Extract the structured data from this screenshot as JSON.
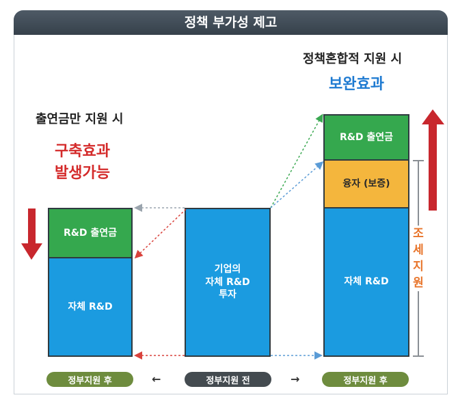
{
  "header": {
    "title": "정책 부가성 제고"
  },
  "left": {
    "caption": "출연금만 지원 시",
    "effect_line1": "구축효과",
    "effect_line2": "발생가능",
    "top_block": "R&D 출연금",
    "bottom_block": "자체 R&D",
    "footer": "정부지원 후"
  },
  "center": {
    "block": "기업의\n자체 R&D\n투자",
    "footer": "정부지원 전"
  },
  "right": {
    "caption": "정책혼합적 지원 시",
    "effect": "보완효과",
    "top_block": "R&D 출연금",
    "middle_block": "융자 (보증)",
    "bottom_block": "자체 R&D",
    "tax_label": "조\n세\n지\n원",
    "footer": "정부지원 후"
  },
  "arrows": {
    "left": "←",
    "right": "→"
  },
  "colors": {
    "header": "#3f4a55",
    "blue_block": "#1b9be0",
    "green_block": "#35a84e",
    "yellow_block": "#f4b63d",
    "red_text": "#d42a2a",
    "blue_text": "#1e7ad1",
    "orange_text": "#e8742a",
    "down_arrow": "#c8272d",
    "up_arrow": "#c8272d"
  }
}
